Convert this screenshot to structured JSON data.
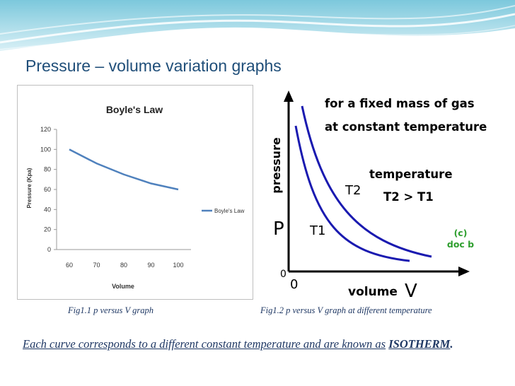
{
  "slide": {
    "title": "Pressure – volume variation graphs",
    "caption1": "Fig1.1  p versus V graph",
    "caption2": "Fig1.2 p versus V graph at different temperature",
    "bottom_text_main": "Each curve corresponds to a different constant temperature and are known as",
    "bottom_text_term": "ISOTHERM",
    "bottom_text_end": "."
  },
  "colors": {
    "title": "#1f4e79",
    "caption": "#1f3864",
    "series1": "#4f81bd",
    "curve": "#1a1ab0",
    "annotation_green": "#2e9e2e"
  },
  "chart_data": [
    {
      "type": "line",
      "title": "Boyle's Law",
      "xlabel": "Volume",
      "ylabel": "Pressure (Kpa)",
      "categories": [
        "60",
        "70",
        "80",
        "90",
        "100"
      ],
      "series": [
        {
          "name": "Boyle's Law",
          "values": [
            100,
            86,
            75,
            66,
            60
          ]
        }
      ],
      "ylim": [
        0,
        120
      ],
      "yticks": [
        "0",
        "20",
        "40",
        "60",
        "80",
        "100",
        "120"
      ],
      "legend": "right"
    },
    {
      "type": "line",
      "title": "for a fixed mass of gas at constant temperature",
      "title_lines": [
        "for a fixed mass of gas",
        "at constant temperature"
      ],
      "xlabel": "volume",
      "xsymbol": "V",
      "ylabel": "pressure",
      "ysymbol": "P",
      "origin_x": "0",
      "origin_y": "0",
      "series": [
        {
          "name": "T2",
          "label": "T2"
        },
        {
          "name": "T1",
          "label": "T1"
        }
      ],
      "annotation_lines": [
        "temperature",
        "T2 > T1"
      ],
      "source_lines": [
        "(c)",
        "doc b"
      ]
    }
  ]
}
